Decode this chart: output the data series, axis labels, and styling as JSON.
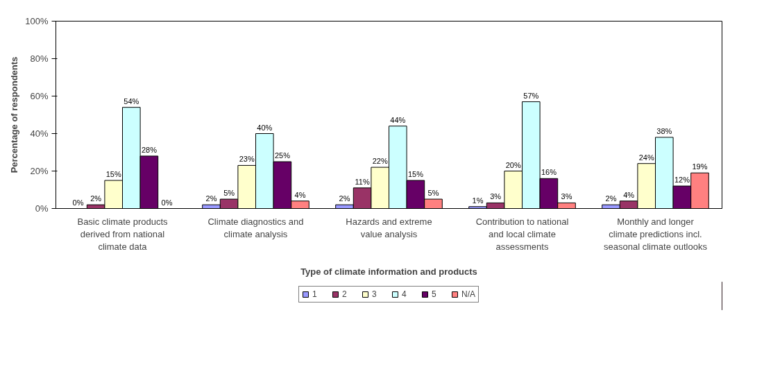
{
  "chart_data": {
    "type": "bar",
    "xlabel": "Type of climate information and products",
    "ylabel": "Percentage of respondents",
    "categories": [
      "Basic climate products\nderived from national\nclimate data",
      "Climate diagnostics and\nclimate analysis",
      "Hazards and extreme\nvalue analysis",
      "Contribution to national\nand local climate\nassessments",
      "Monthly and longer\nclimate predictions incl.\nseasonal climate outlooks"
    ],
    "series": [
      {
        "name": "1",
        "color": "#9999ff",
        "values": [
          0,
          2,
          2,
          1,
          2
        ],
        "value_labels": [
          "0%",
          "2%",
          "2%",
          "1%",
          "2%"
        ]
      },
      {
        "name": "2",
        "color": "#993366",
        "values": [
          2,
          5,
          11,
          3,
          4
        ],
        "value_labels": [
          "2%",
          "5%",
          "11%",
          "3%",
          "4%"
        ]
      },
      {
        "name": "3",
        "color": "#ffffcc",
        "values": [
          15,
          23,
          22,
          20,
          24
        ],
        "value_labels": [
          "15%",
          "23%",
          "22%",
          "20%",
          "24%"
        ]
      },
      {
        "name": "4",
        "color": "#ccffff",
        "values": [
          54,
          40,
          44,
          57,
          38
        ],
        "value_labels": [
          "54%",
          "40%",
          "44%",
          "57%",
          "38%"
        ]
      },
      {
        "name": "5",
        "color": "#660066",
        "values": [
          28,
          25,
          15,
          16,
          12
        ],
        "value_labels": [
          "28%",
          "25%",
          "15%",
          "16%",
          "12%"
        ]
      },
      {
        "name": "N/A",
        "color": "#ff8080",
        "values": [
          0,
          4,
          5,
          3,
          19
        ],
        "value_labels": [
          "0%",
          "4%",
          "5%",
          "3%",
          "19%"
        ]
      }
    ],
    "ylim": [
      0,
      100
    ],
    "yticks": [
      {
        "value": 0,
        "label": "0%"
      },
      {
        "value": 20,
        "label": "20%"
      },
      {
        "value": 40,
        "label": "40%"
      },
      {
        "value": 60,
        "label": "60%"
      },
      {
        "value": 80,
        "label": "80%"
      },
      {
        "value": 100,
        "label": "100%"
      }
    ],
    "legend": "bottom"
  }
}
